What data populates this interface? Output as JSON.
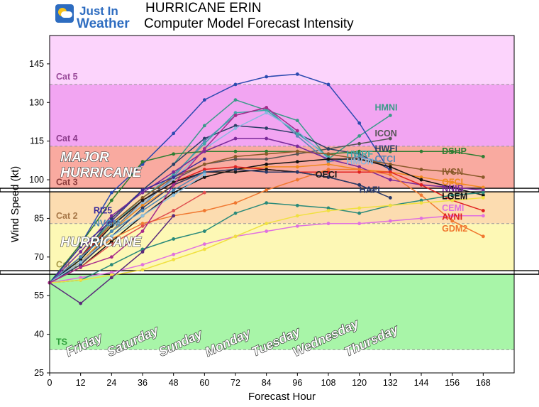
{
  "header": {
    "logo_text_1": "Just In",
    "logo_text_2": "Weather",
    "title": "HURRICANE ERIN",
    "subtitle": "Computer Model Forecast Intensity"
  },
  "chart_data": {
    "type": "line",
    "xlabel": "Forecast Hour",
    "ylabel": "Wind Speed (kt)",
    "xlim": [
      0,
      180
    ],
    "ylim": [
      25,
      156
    ],
    "xticks": [
      0,
      12,
      24,
      36,
      48,
      60,
      72,
      84,
      96,
      108,
      120,
      132,
      144,
      156,
      168
    ],
    "yticks": [
      25,
      40,
      55,
      70,
      85,
      100,
      115,
      130,
      145
    ],
    "bands": [
      {
        "name": "TS",
        "from": 34,
        "to": 64,
        "color": "#a8f5a8"
      },
      {
        "name": "Cat 1",
        "from": 64,
        "to": 83,
        "color": "#fdf8b5"
      },
      {
        "name": "Cat 2",
        "from": 83,
        "to": 96,
        "color": "#fcdcb0"
      },
      {
        "name": "Cat 3",
        "from": 96,
        "to": 113,
        "color": "#f9aaa0"
      },
      {
        "name": "Cat 4",
        "from": 113,
        "to": 137,
        "color": "#f2a5f2"
      },
      {
        "name": "Cat 5",
        "from": 137,
        "to": 156,
        "color": "#fcd4fc"
      }
    ],
    "band_labels": [
      {
        "text": "TS",
        "y": 37,
        "color": "#2e9e3a"
      },
      {
        "text": "Cat 1",
        "y": 67,
        "color": "#a89a48"
      },
      {
        "text": "Cat 2",
        "y": 86,
        "color": "#a87848"
      },
      {
        "text": "Cat 3",
        "y": 99,
        "color": "#8a3a3a"
      },
      {
        "text": "Cat 4",
        "y": 116,
        "color": "#8a3a8a"
      },
      {
        "text": "Cat 5",
        "y": 140,
        "color": "#9a4a9a"
      }
    ],
    "threshold_lines": [
      64,
      96
    ],
    "category_text": [
      {
        "text": "MAJOR",
        "x": 2,
        "y": 109
      },
      {
        "text": "HURRICANE",
        "x": 2,
        "y": 103
      },
      {
        "text": "HURRICANE",
        "x": 2,
        "y": 76
      }
    ],
    "day_labels": [
      {
        "text": "Friday",
        "x": 10
      },
      {
        "text": "Saturday",
        "x": 26
      },
      {
        "text": "Sunday",
        "x": 46
      },
      {
        "text": "Monday",
        "x": 64
      },
      {
        "text": "Tuesday",
        "x": 82
      },
      {
        "text": "Wednesday",
        "x": 98
      },
      {
        "text": "Thursday",
        "x": 118
      }
    ],
    "series": [
      {
        "name": "HMNI",
        "color": "#3a9a88",
        "x": [
          0,
          12,
          24,
          36,
          48,
          60,
          72,
          84,
          96,
          108,
          120,
          132
        ],
        "y": [
          60,
          70,
          84,
          96,
          106,
          121,
          131,
          127,
          123,
          108,
          117,
          125
        ],
        "label_x": 126,
        "label_y": 128
      },
      {
        "name": "ICON",
        "color": "#555555",
        "x": [
          0,
          12,
          24,
          36,
          48,
          60,
          72,
          84,
          96,
          108,
          120,
          132
        ],
        "y": [
          60,
          67,
          80,
          92,
          100,
          106,
          108,
          108,
          110,
          112,
          114,
          116
        ],
        "label_x": 126,
        "label_y": 118
      },
      {
        "name": "HWFI",
        "color": "#2c3e66",
        "x": [
          0,
          12,
          24,
          36,
          48,
          60,
          72,
          84,
          96,
          108,
          120,
          132
        ],
        "y": [
          60,
          70,
          85,
          96,
          106,
          116,
          121,
          120,
          118,
          112,
          110,
          104
        ],
        "label_x": 126,
        "label_y": 112
      },
      {
        "name": "CTCI",
        "color": "#5a8ab8",
        "x": [
          0,
          12,
          24,
          36,
          48,
          60,
          72,
          84,
          96,
          108,
          120,
          132
        ],
        "y": [
          60,
          68,
          80,
          90,
          101,
          115,
          125,
          128,
          117,
          107,
          109,
          106
        ],
        "label_x": 126,
        "label_y": 108
      },
      {
        "name": "HWRF",
        "color": "#40a8a8",
        "x": [
          0,
          12,
          24,
          36,
          48,
          60,
          72,
          84,
          96,
          108
        ],
        "y": [
          60,
          69,
          82,
          93,
          102,
          114,
          126,
          127,
          118,
          109
        ],
        "label_x": 115,
        "label_y": 110
      },
      {
        "name": "HMON",
        "color": "#8ab8e0",
        "x": [
          0,
          12,
          24,
          36,
          48,
          60,
          72,
          84,
          96,
          108
        ],
        "y": [
          60,
          68,
          80,
          91,
          100,
          112,
          120,
          126,
          119,
          108
        ],
        "label_x": 115,
        "label_y": 107
      },
      {
        "name": "Cat5 model",
        "color": "#2c4ab0",
        "x": [
          0,
          12,
          24,
          36,
          48,
          60,
          72,
          84,
          96,
          108,
          120,
          132
        ],
        "y": [
          60,
          75,
          95,
          106,
          118,
          131,
          137,
          140,
          141,
          137,
          122,
          103
        ]
      },
      {
        "name": "DSHP",
        "color": "#2e7d32",
        "x": [
          0,
          12,
          24,
          36,
          48,
          60,
          72,
          84,
          96,
          108,
          120,
          132,
          144,
          156,
          168
        ],
        "y": [
          60,
          75,
          92,
          107,
          110,
          111,
          111,
          111,
          111,
          110,
          111,
          111,
          111,
          111,
          109
        ],
        "label_x": 152,
        "label_y": 111
      },
      {
        "name": "IVCN",
        "color": "#8a5a2a",
        "x": [
          0,
          12,
          24,
          36,
          48,
          60,
          72,
          84,
          96,
          108,
          120,
          132,
          144,
          156,
          168
        ],
        "y": [
          60,
          70,
          83,
          93,
          101,
          106,
          109,
          110,
          111,
          110,
          108,
          106,
          104,
          103,
          101
        ],
        "label_x": 152,
        "label_y": 103
      },
      {
        "name": "OFCL",
        "color": "#f08a20",
        "x": [
          0,
          12,
          24,
          36,
          48,
          60,
          72,
          84,
          96,
          108,
          120,
          132,
          144,
          156,
          168
        ],
        "y": [
          60,
          68,
          80,
          90,
          98,
          103,
          104,
          105,
          105,
          106,
          104,
          103,
          101,
          99,
          97
        ],
        "label_x": 152,
        "label_y": 99
      },
      {
        "name": "NNIB",
        "color": "#7a2a9a",
        "x": [
          0,
          12,
          24,
          36,
          48,
          60,
          72,
          84,
          96,
          108,
          120,
          132,
          144,
          156,
          168
        ],
        "y": [
          60,
          72,
          86,
          95,
          103,
          111,
          116,
          116,
          113,
          108,
          105,
          100,
          98,
          97,
          96
        ],
        "label_x": 152,
        "label_y": 96.5
      },
      {
        "name": "LGEM",
        "color": "#111111",
        "x": [
          0,
          12,
          24,
          36,
          48,
          60,
          72,
          84,
          96,
          108,
          120,
          132,
          144,
          156,
          168
        ],
        "y": [
          60,
          66,
          76,
          86,
          95,
          101,
          104,
          106,
          107,
          108,
          108,
          105,
          100,
          97,
          94
        ],
        "label_x": 152,
        "label_y": 93.5
      },
      {
        "name": "CEMI",
        "color": "#e070e0",
        "x": [
          0,
          12,
          24,
          36,
          48,
          60,
          72,
          84,
          96,
          108,
          120,
          132,
          144,
          156,
          168
        ],
        "y": [
          60,
          62,
          64,
          67,
          71,
          75,
          78,
          80,
          82,
          83,
          83,
          84,
          85,
          86,
          86
        ],
        "label_x": 152,
        "label_y": 89
      },
      {
        "name": "AVNI",
        "color": "#e02020",
        "x": [
          0,
          12,
          24,
          36,
          48,
          60,
          72,
          84,
          96,
          108,
          120,
          132,
          144,
          156,
          168
        ],
        "y": [
          60,
          70,
          82,
          92,
          99,
          104,
          105,
          104,
          103,
          103,
          103,
          103,
          98,
          92,
          88
        ],
        "label_x": 152,
        "label_y": 85.5
      },
      {
        "name": "GDM2",
        "color": "#f07830",
        "x": [
          0,
          12,
          24,
          36,
          48,
          60,
          72,
          84,
          96,
          108,
          120,
          132,
          144,
          156,
          168
        ],
        "y": [
          60,
          68,
          77,
          83,
          86,
          88,
          91,
          96,
          100,
          104,
          104,
          102,
          94,
          84,
          78
        ],
        "label_x": 152,
        "label_y": 81
      },
      {
        "name": "OECI",
        "color": "#1a1a1a",
        "x": [
          0,
          12,
          24,
          36,
          48,
          60,
          72,
          84,
          96,
          108,
          120
        ],
        "y": [
          60,
          69,
          82,
          92,
          99,
          103,
          103,
          104,
          103,
          101,
          98
        ],
        "label_x": 103,
        "label_y": 102
      },
      {
        "name": "HAFI",
        "color": "#2a3a6a",
        "x": [
          0,
          12,
          24,
          36,
          48,
          60,
          72,
          84,
          96,
          108,
          120,
          132
        ],
        "y": [
          60,
          67,
          78,
          89,
          98,
          103,
          104,
          103,
          103,
          101,
          98,
          93
        ],
        "label_x": 120,
        "label_y": 96
      },
      {
        "name": "RI25",
        "color": "#3a2a9a",
        "x": [
          0,
          12,
          24,
          36,
          48,
          60
        ],
        "y": [
          60,
          74,
          84,
          96,
          101,
          108
        ],
        "label_x": 17,
        "label_y": 88
      },
      {
        "name": "NVGM",
        "color": "#4a8ab8",
        "x": [
          0,
          12,
          24,
          36,
          48,
          60
        ],
        "y": [
          60,
          70,
          80,
          88,
          96,
          103
        ],
        "label_x": 17,
        "label_y": 83
      },
      {
        "name": "Light blue model",
        "color": "#8ac0e0",
        "x": [
          0,
          12,
          24,
          36,
          48,
          60
        ],
        "y": [
          60,
          68,
          78,
          86,
          94,
          102
        ]
      },
      {
        "name": "Red model",
        "color": "#e05050",
        "x": [
          0,
          12,
          24,
          36,
          48,
          60
        ],
        "y": [
          60,
          66,
          75,
          82,
          88,
          95
        ]
      },
      {
        "name": "Teal model",
        "color": "#2a8a7a",
        "x": [
          0,
          12,
          24,
          36,
          48,
          60,
          72,
          84,
          96,
          108,
          120,
          132,
          144,
          156,
          168
        ],
        "y": [
          60,
          61,
          67,
          73,
          77,
          80,
          87,
          91,
          90,
          89,
          87,
          90,
          92,
          94,
          95
        ]
      },
      {
        "name": "Yellow model",
        "color": "#f0e040",
        "x": [
          0,
          12,
          24,
          36,
          48,
          60,
          72,
          84,
          96,
          108,
          120,
          132,
          144,
          156,
          168
        ],
        "y": [
          60,
          61,
          63,
          65,
          69,
          73,
          78,
          83,
          86,
          88,
          89,
          90,
          91,
          92,
          93
        ]
      },
      {
        "name": "Purple model",
        "color": "#5a2a7a",
        "x": [
          0,
          12,
          24,
          36,
          48
        ],
        "y": [
          60,
          52,
          62,
          72,
          86
        ]
      },
      {
        "name": "Magenta model",
        "color": "#a82a8a",
        "x": [
          0,
          12,
          24,
          36,
          48,
          60,
          72,
          84,
          96
        ],
        "y": [
          60,
          66,
          70,
          80,
          98,
          112,
          125,
          128,
          119
        ]
      }
    ]
  }
}
